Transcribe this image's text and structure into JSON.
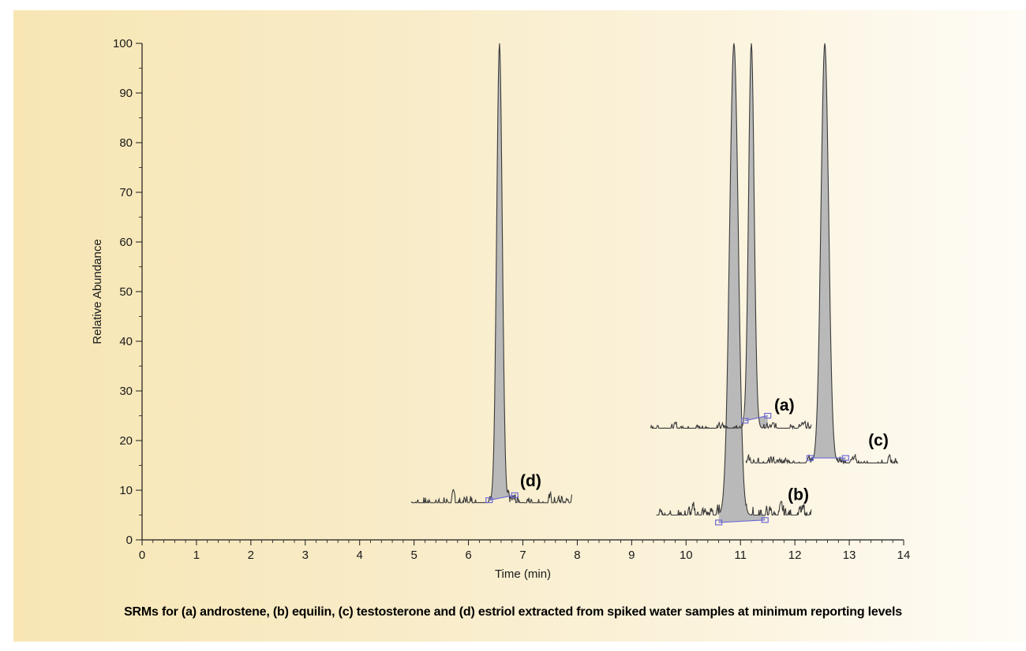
{
  "chart_data": {
    "type": "line",
    "title": "",
    "xlabel": "Time (min)",
    "ylabel": "Relative Abundance",
    "xlim": [
      0,
      14
    ],
    "ylim": [
      0,
      100
    ],
    "x_ticks": [
      0,
      1,
      2,
      3,
      4,
      5,
      6,
      7,
      8,
      9,
      10,
      11,
      12,
      13,
      14
    ],
    "y_ticks": [
      0,
      10,
      20,
      30,
      40,
      50,
      60,
      70,
      80,
      90,
      100
    ],
    "grid": false,
    "legend": "none",
    "caption": "SRMs for (a) androstene, (b) equilin, (c) testosterone and (d) estriol extracted from spiked water samples at minimum reporting levels",
    "series": [
      {
        "label": "(d)",
        "label_at": [
          6.95,
          10.8
        ],
        "color": "#3a3a3a",
        "x_range": [
          4.95,
          7.9
        ],
        "baseline": 7.5,
        "noise": 1.2,
        "peak": {
          "apex_time": 6.57,
          "apex": 100,
          "width": 0.22,
          "start": 6.38,
          "end": 6.85,
          "start_level": 8.0,
          "end_level": 9.0
        }
      },
      {
        "label": "(a)",
        "label_at": [
          11.62,
          26.0
        ],
        "color": "#3a3a3a",
        "x_range": [
          9.35,
          12.3
        ],
        "baseline": 22.5,
        "noise": 0.7,
        "peak": {
          "apex_time": 11.2,
          "apex": 100,
          "width": 0.22,
          "start": 11.08,
          "end": 11.5,
          "start_level": 24.0,
          "end_level": 25.0
        }
      },
      {
        "label": "(b)",
        "label_at": [
          11.87,
          8.0
        ],
        "color": "#3a3a3a",
        "x_range": [
          9.45,
          12.3
        ],
        "baseline": 5.0,
        "noise": 1.3,
        "peak": {
          "apex_time": 10.88,
          "apex": 100,
          "width": 0.34,
          "start": 10.6,
          "end": 11.45,
          "start_level": 3.5,
          "end_level": 4.0
        }
      },
      {
        "label": "(c)",
        "label_at": [
          13.35,
          19.0
        ],
        "color": "#3a3a3a",
        "x_range": [
          11.1,
          13.9
        ],
        "baseline": 15.5,
        "noise": 0.8,
        "peak": {
          "apex_time": 12.55,
          "apex": 100,
          "width": 0.3,
          "start": 12.28,
          "end": 12.93,
          "start_level": 16.5,
          "end_level": 16.5
        }
      }
    ],
    "peak_fill_color": "#b9b9b9",
    "integration_color": "#6b6bd6"
  }
}
